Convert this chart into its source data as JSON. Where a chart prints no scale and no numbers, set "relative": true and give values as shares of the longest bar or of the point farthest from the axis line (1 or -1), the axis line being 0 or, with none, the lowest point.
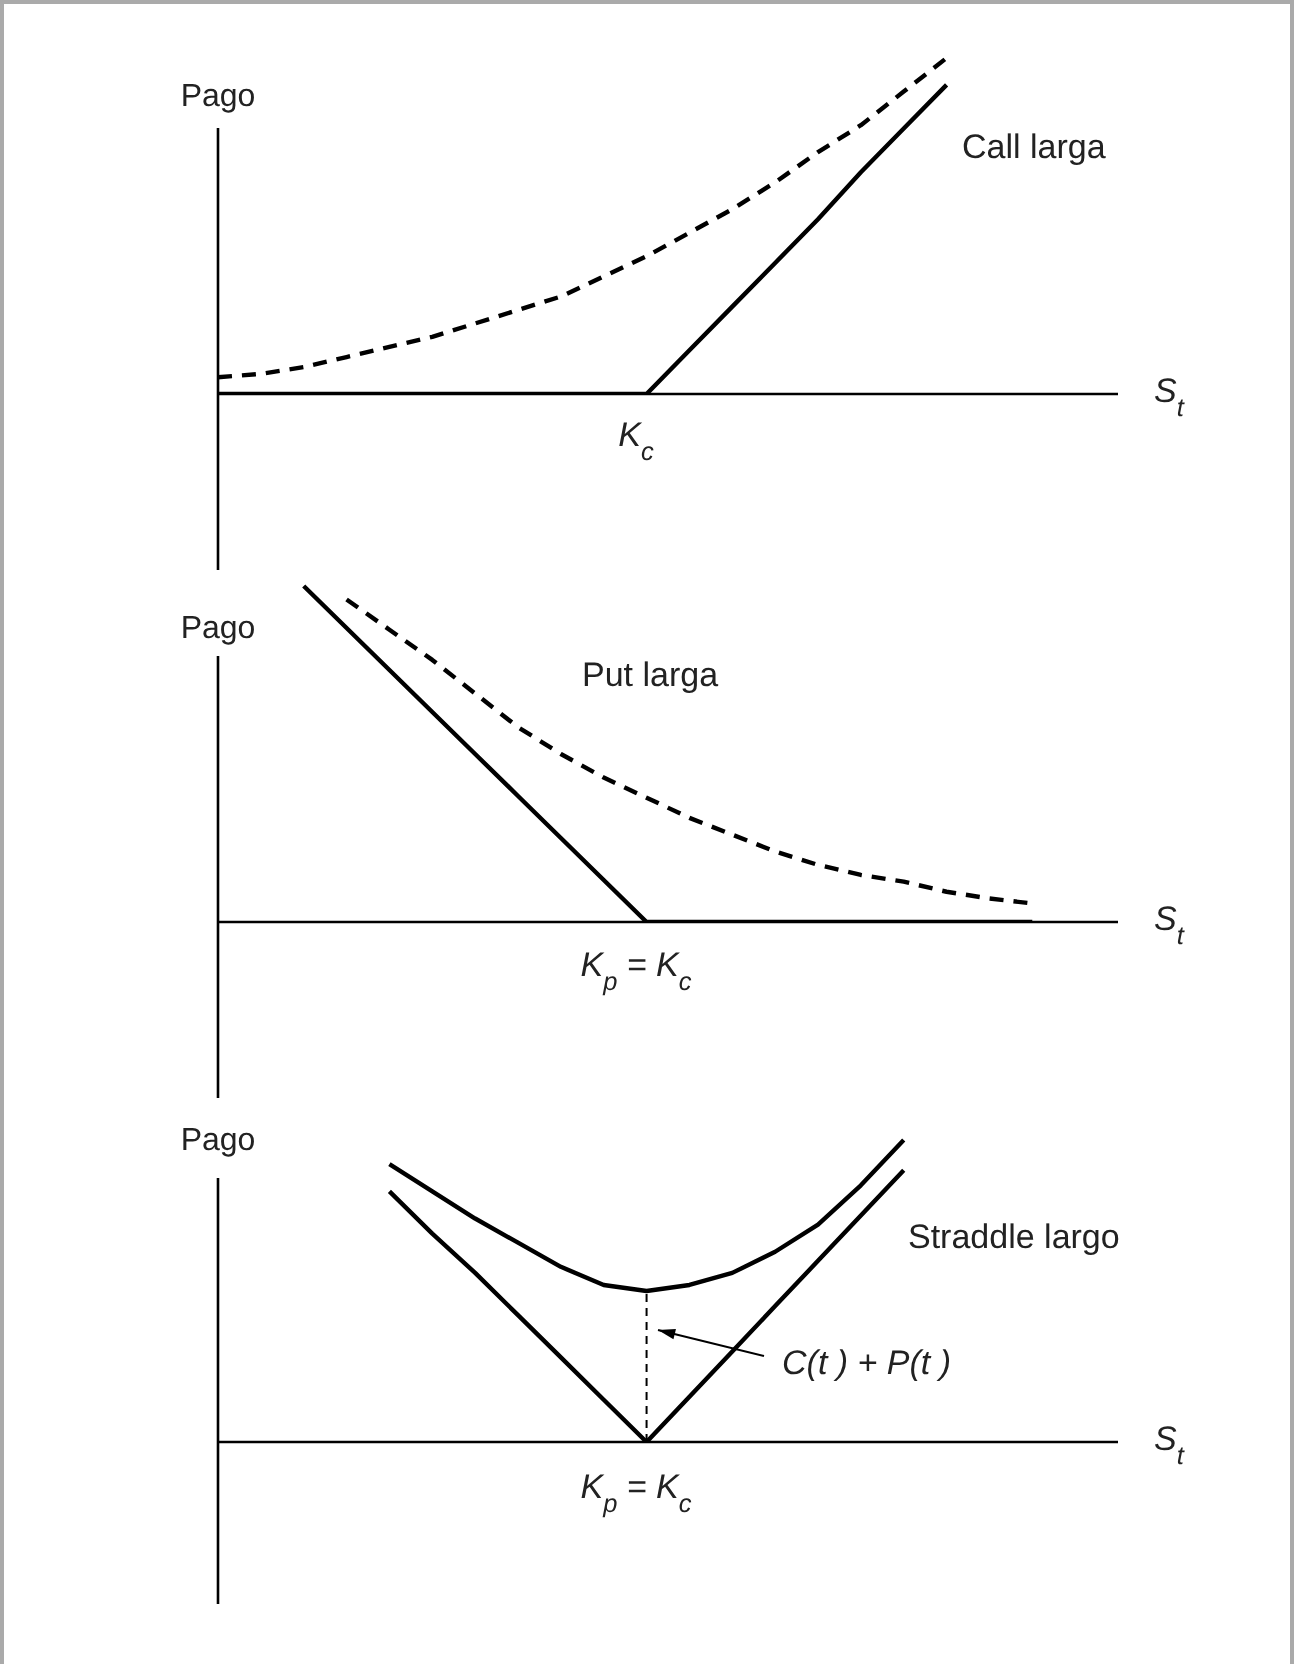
{
  "chart_data": [
    {
      "type": "line",
      "relative": true,
      "ylabel": "Pago",
      "xlabel": "S$_{t}$",
      "marker": "none",
      "annotations": [
        "Call larga",
        "K$_{c}$"
      ],
      "categories": [
        null,
        null,
        null,
        null,
        null,
        null,
        null,
        null,
        null,
        null,
        null,
        null,
        null,
        null,
        null,
        null,
        null,
        null,
        null,
        null,
        null,
        null
      ],
      "series": [
        {
          "color": "#000000",
          "line_style": "solid",
          "values": [
            0,
            0,
            0,
            0,
            0,
            0,
            0,
            0,
            0,
            0,
            0,
            0.13,
            0.26,
            0.39,
            0.52,
            0.66,
            0.79,
            0.92,
            null,
            null,
            null,
            null
          ]
        },
        {
          "color": "#000000",
          "line_style": "dashed",
          "values": [
            0.05,
            0.06,
            0.08,
            0.11,
            0.14,
            0.17,
            0.21,
            0.25,
            0.29,
            0.35,
            0.41,
            0.48,
            0.55,
            0.63,
            0.72,
            0.8,
            0.9,
            1.0,
            null,
            null,
            null,
            null
          ]
        }
      ]
    },
    {
      "type": "line",
      "relative": true,
      "ylabel": "Pago",
      "xlabel": "S$_{t}$",
      "marker": "none",
      "annotations": [
        "Put larga",
        "K$_{p}$ = K$_{c}$"
      ],
      "categories": [
        null,
        null,
        null,
        null,
        null,
        null,
        null,
        null,
        null,
        null,
        null,
        null,
        null,
        null,
        null,
        null,
        null,
        null,
        null,
        null,
        null,
        null
      ],
      "series": [
        {
          "color": "#000000",
          "line_style": "solid",
          "values": [
            null,
            null,
            1.0,
            0.875,
            0.75,
            0.625,
            0.5,
            0.375,
            0.25,
            0.125,
            0,
            0,
            0,
            0,
            0,
            0,
            0,
            0,
            0,
            0,
            null,
            null
          ]
        },
        {
          "color": "#000000",
          "line_style": "dashed",
          "values": [
            null,
            null,
            null,
            0.96,
            0.87,
            0.78,
            0.68,
            0.58,
            0.5,
            0.43,
            0.37,
            0.31,
            0.26,
            0.21,
            0.17,
            0.14,
            0.12,
            0.09,
            0.07,
            0.055,
            null,
            null
          ]
        }
      ]
    },
    {
      "type": "line",
      "relative": true,
      "ylabel": "Pago",
      "xlabel": "S$_{t}$",
      "marker": "none",
      "annotations": [
        "Straddle largo",
        "C(t ) + P(t )",
        "K$_{p}$ = K$_{c}$"
      ],
      "categories": [
        null,
        null,
        null,
        null,
        null,
        null,
        null,
        null,
        null,
        null,
        null,
        null,
        null,
        null,
        null,
        null,
        null,
        null,
        null,
        null,
        null,
        null
      ],
      "series": [
        {
          "color": "#000000",
          "line_style": "solid",
          "values": [
            null,
            null,
            null,
            null,
            0.83,
            0.69,
            0.56,
            0.42,
            0.28,
            0.14,
            0,
            0.15,
            0.3,
            0.45,
            0.6,
            0.75,
            0.9,
            null,
            null,
            null,
            null,
            null
          ]
        },
        {
          "color": "#000000",
          "line_style": "solid",
          "values": [
            null,
            null,
            null,
            null,
            0.92,
            0.83,
            0.74,
            0.66,
            0.58,
            0.52,
            0.5,
            0.52,
            0.56,
            0.63,
            0.72,
            0.85,
            1.0,
            null,
            null,
            null,
            null,
            null
          ]
        }
      ]
    }
  ]
}
